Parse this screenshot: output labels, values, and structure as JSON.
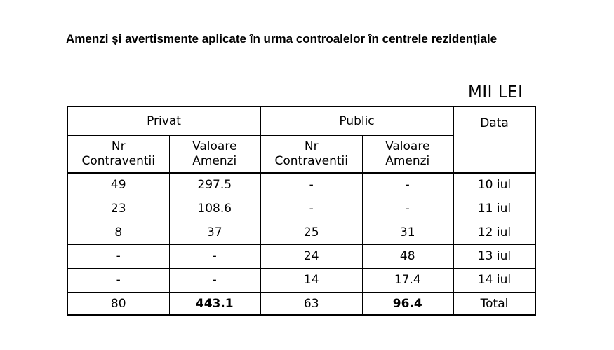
{
  "title": "Amenzi și avertismente aplicate în urma controalelor în centrele rezidențiale",
  "unit": "MII LEI",
  "table": {
    "group_private": "Privat",
    "group_public": "Public",
    "col_date": "Data",
    "sub_nr_line1": "Nr",
    "sub_nr_line2": "Contraventii",
    "sub_val_line1": "Valoare",
    "sub_val_line2": "Amenzi",
    "rows": [
      [
        "49",
        "297.5",
        "-",
        "-",
        "10 iul"
      ],
      [
        "23",
        "108.6",
        "-",
        "-",
        "11 iul"
      ],
      [
        "8",
        "37",
        "25",
        "31",
        "12 iul"
      ],
      [
        "-",
        "-",
        "24",
        "48",
        "13 iul"
      ],
      [
        "-",
        "-",
        "14",
        "17.4",
        "14 iul"
      ]
    ],
    "total": [
      "80",
      "443.1",
      "63",
      "96.4",
      "Total"
    ]
  }
}
